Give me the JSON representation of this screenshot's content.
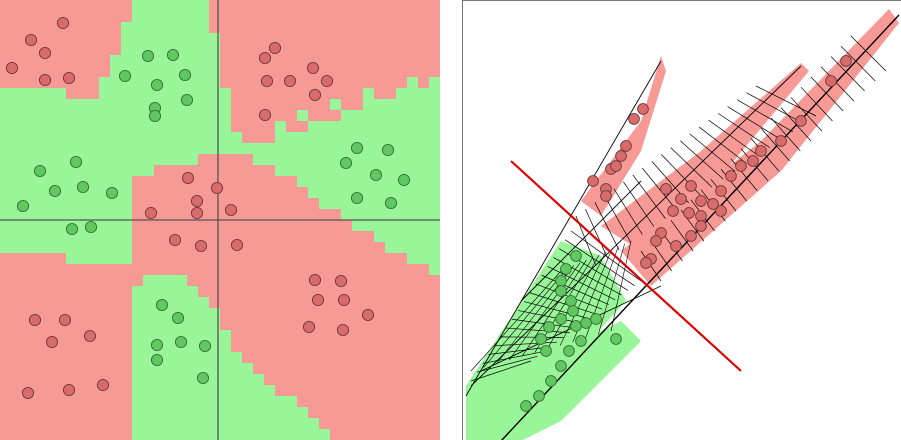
{
  "colors": {
    "class_a_region": "#f79a96",
    "class_b_region": "#98f598",
    "class_a_point": "#d96b6b",
    "class_b_point": "#5fc85f",
    "point_stroke": "#6b3a3a",
    "axis": "#555555",
    "separator": "#dd0000",
    "mesh": "#000000"
  },
  "left": {
    "grid_size": 40,
    "class_a_points": [
      [
        63,
        23
      ],
      [
        31,
        40
      ],
      [
        45,
        53
      ],
      [
        12,
        68
      ],
      [
        45,
        80
      ],
      [
        69,
        78
      ],
      [
        275,
        48
      ],
      [
        265,
        58
      ],
      [
        267,
        81
      ],
      [
        290,
        81
      ],
      [
        313,
        68
      ],
      [
        315,
        95
      ],
      [
        327,
        81
      ],
      [
        265,
        115
      ],
      [
        188,
        178
      ],
      [
        217,
        188
      ],
      [
        197,
        201
      ],
      [
        151,
        213
      ],
      [
        197,
        213
      ],
      [
        231,
        210
      ],
      [
        175,
        240
      ],
      [
        201,
        246
      ],
      [
        237,
        245
      ],
      [
        315,
        280
      ],
      [
        341,
        281
      ],
      [
        318,
        300
      ],
      [
        344,
        300
      ],
      [
        309,
        327
      ],
      [
        343,
        330
      ],
      [
        368,
        315
      ],
      [
        35,
        320
      ],
      [
        65,
        320
      ],
      [
        52,
        342
      ],
      [
        90,
        336
      ],
      [
        28,
        393
      ],
      [
        69,
        390
      ],
      [
        103,
        385
      ]
    ],
    "class_b_points": [
      [
        148,
        56
      ],
      [
        173,
        55
      ],
      [
        125,
        76
      ],
      [
        157,
        85
      ],
      [
        185,
        75
      ],
      [
        155,
        108
      ],
      [
        187,
        100
      ],
      [
        155,
        116
      ],
      [
        40,
        171
      ],
      [
        76,
        162
      ],
      [
        55,
        191
      ],
      [
        83,
        187
      ],
      [
        112,
        193
      ],
      [
        23,
        206
      ],
      [
        72,
        229
      ],
      [
        91,
        227
      ],
      [
        357,
        148
      ],
      [
        388,
        150
      ],
      [
        346,
        163
      ],
      [
        376,
        175
      ],
      [
        404,
        180
      ],
      [
        357,
        198
      ],
      [
        391,
        203
      ],
      [
        162,
        305
      ],
      [
        178,
        318
      ],
      [
        157,
        345
      ],
      [
        181,
        342
      ],
      [
        205,
        346
      ],
      [
        157,
        360
      ],
      [
        203,
        378
      ]
    ]
  },
  "right": {
    "class_a_points": [
      [
        642,
        108
      ],
      [
        633,
        118
      ],
      [
        625,
        145
      ],
      [
        620,
        155
      ],
      [
        610,
        168
      ],
      [
        592,
        180
      ],
      [
        605,
        188
      ],
      [
        605,
        195
      ],
      [
        615,
        165
      ],
      [
        665,
        188
      ],
      [
        690,
        185
      ],
      [
        680,
        198
      ],
      [
        700,
        200
      ],
      [
        720,
        190
      ],
      [
        730,
        175
      ],
      [
        740,
        165
      ],
      [
        752,
        160
      ],
      [
        760,
        150
      ],
      [
        780,
        140
      ],
      [
        800,
        120
      ],
      [
        830,
        80
      ],
      [
        845,
        60
      ],
      [
        672,
        210
      ],
      [
        688,
        212
      ],
      [
        700,
        215
      ],
      [
        712,
        203
      ],
      [
        720,
        210
      ],
      [
        700,
        225
      ],
      [
        690,
        235
      ],
      [
        675,
        245
      ],
      [
        660,
        232
      ],
      [
        650,
        258
      ],
      [
        645,
        262
      ],
      [
        655,
        240
      ]
    ],
    "class_b_points": [
      [
        575,
        255
      ],
      [
        565,
        268
      ],
      [
        560,
        280
      ],
      [
        560,
        290
      ],
      [
        570,
        300
      ],
      [
        572,
        310
      ],
      [
        560,
        318
      ],
      [
        548,
        326
      ],
      [
        540,
        338
      ],
      [
        545,
        350
      ],
      [
        575,
        325
      ],
      [
        585,
        322
      ],
      [
        595,
        318
      ],
      [
        580,
        340
      ],
      [
        568,
        350
      ],
      [
        560,
        365
      ],
      [
        550,
        380
      ],
      [
        538,
        395
      ],
      [
        525,
        405
      ],
      [
        615,
        338
      ]
    ]
  }
}
